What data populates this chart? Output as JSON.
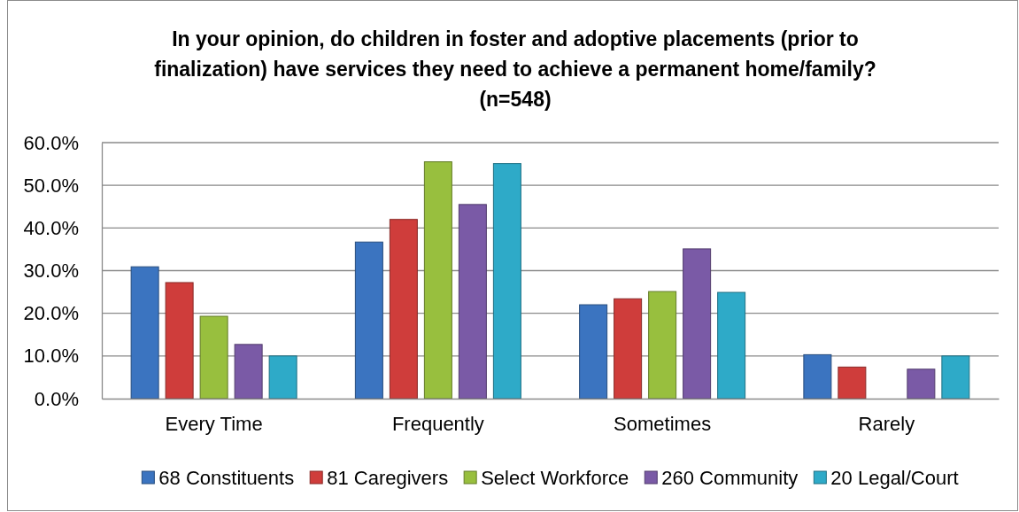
{
  "chart_data": {
    "type": "bar",
    "title": "In your opinion, do children in foster and adoptive placements (prior to\nfinalization) have services they need to achieve a permanent home/family?\n(n=548)",
    "categories": [
      "Every Time",
      "Frequently",
      "Sometimes",
      "Rarely"
    ],
    "series": [
      {
        "name": "68 Constituents",
        "color": "#3b74c0",
        "values": [
          30.9,
          36.7,
          22.0,
          10.3
        ]
      },
      {
        "name": "81 Caregivers",
        "color": "#cf3d3b",
        "values": [
          27.2,
          42.0,
          23.4,
          7.4
        ]
      },
      {
        "name": "Select Workforce",
        "color": "#98bf3e",
        "values": [
          19.3,
          55.5,
          25.1,
          null
        ]
      },
      {
        "name": "260 Community",
        "color": "#7a5aa6",
        "values": [
          12.7,
          45.5,
          35.1,
          6.9
        ]
      },
      {
        "name": "20 Legal/Court",
        "color": "#2eaac8",
        "values": [
          10.0,
          55.1,
          24.9,
          10.0
        ]
      }
    ],
    "ylim": [
      0,
      60
    ],
    "yticks": [
      {
        "value": 0,
        "label": "0.0%"
      },
      {
        "value": 10,
        "label": "10.0%"
      },
      {
        "value": 20,
        "label": "20.0%"
      },
      {
        "value": 30,
        "label": "30.0%"
      },
      {
        "value": 40,
        "label": "40.0%"
      },
      {
        "value": 50,
        "label": "50.0%"
      },
      {
        "value": 60,
        "label": "60.0%"
      }
    ],
    "grid": "y",
    "legend": "bottom"
  }
}
